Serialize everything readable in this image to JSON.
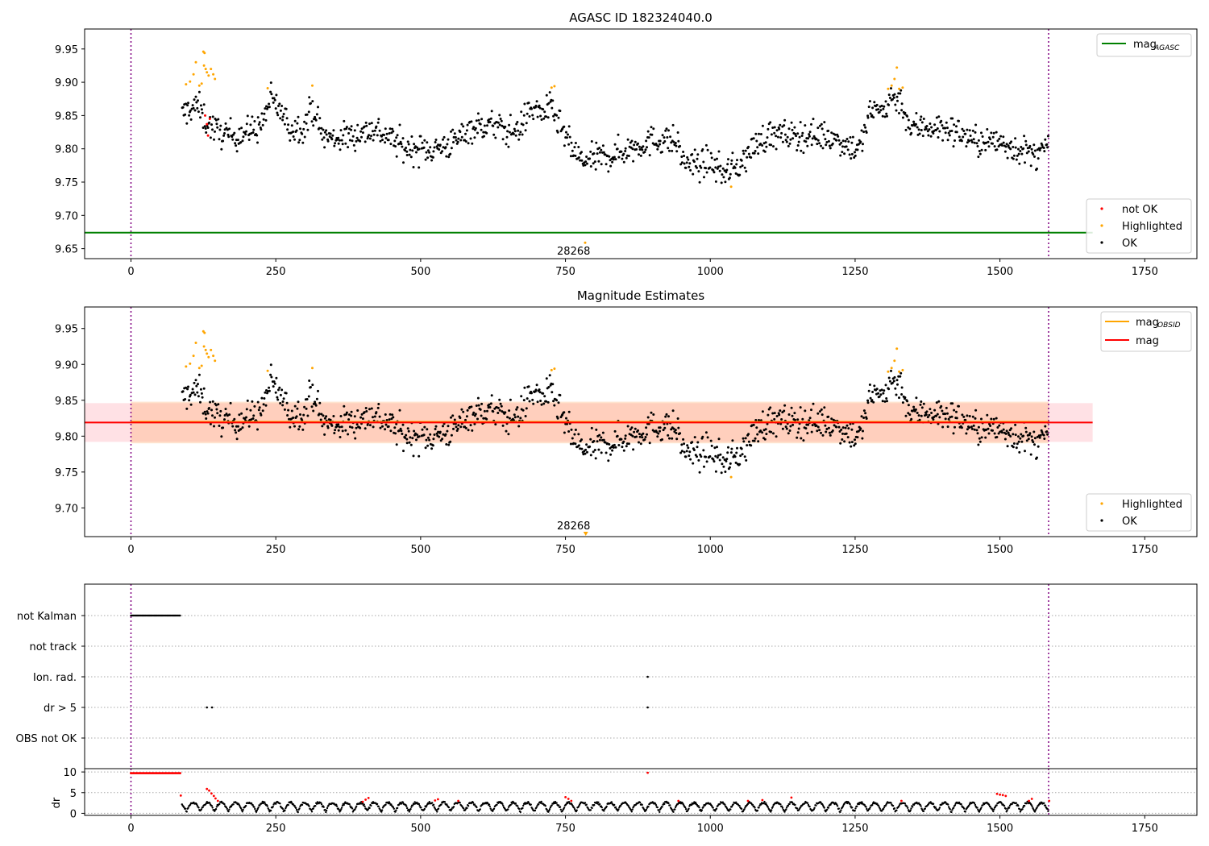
{
  "chart_data": [
    {
      "type": "scatter",
      "title": "AGASC ID 182324040.0",
      "xlim": [
        -80,
        1840
      ],
      "ylim": [
        9.635,
        9.98
      ],
      "x_ticks": [
        0,
        250,
        500,
        750,
        1000,
        1250,
        1500,
        1750
      ],
      "x_tick_labels": [
        "0",
        "250",
        "500",
        "750",
        "1000",
        "1250",
        "1500",
        "1750"
      ],
      "y_ticks": [
        9.65,
        9.7,
        9.75,
        9.8,
        9.85,
        9.9,
        9.95
      ],
      "y_tick_labels": [
        "9.65",
        "9.70",
        "9.75",
        "9.80",
        "9.85",
        "9.90",
        "9.95"
      ],
      "vlines": [
        0,
        1584
      ],
      "hline": {
        "name": "mag_AGASC",
        "value": 9.674,
        "color": "#008000",
        "x_range": [
          -80,
          1660
        ]
      },
      "legend_lines": [
        {
          "label": "mag",
          "subscript": "AGASC",
          "color": "#008000"
        }
      ],
      "legend_points": [
        {
          "label": "not OK",
          "color": "#ff0000"
        },
        {
          "label": "Highlighted",
          "color": "#ffa500"
        },
        {
          "label": "OK",
          "color": "#000000"
        }
      ],
      "annotation": {
        "text": "28268",
        "x": 785,
        "y": 9.659
      },
      "highlighted_points": [
        [
          95,
          9.897
        ],
        [
          102,
          9.901
        ],
        [
          108,
          9.912
        ],
        [
          112,
          9.93
        ],
        [
          118,
          9.895
        ],
        [
          122,
          9.898
        ],
        [
          125,
          9.946
        ],
        [
          127,
          9.944
        ],
        [
          126,
          9.925
        ],
        [
          129,
          9.92
        ],
        [
          131,
          9.915
        ],
        [
          134,
          9.91
        ],
        [
          138,
          9.92
        ],
        [
          142,
          9.912
        ],
        [
          145,
          9.905
        ],
        [
          236,
          9.891
        ],
        [
          313,
          9.895
        ],
        [
          726,
          9.892
        ],
        [
          731,
          9.894
        ],
        [
          1036,
          9.743
        ],
        [
          1307,
          9.89
        ],
        [
          1313,
          9.895
        ],
        [
          1318,
          9.905
        ],
        [
          1322,
          9.922
        ],
        [
          1326,
          9.89
        ],
        [
          1332,
          9.892
        ],
        [
          784,
          9.659
        ]
      ],
      "not_ok_points": [
        [
          128,
          9.85
        ],
        [
          131,
          9.837
        ],
        [
          133,
          9.82
        ],
        [
          136,
          9.845
        ]
      ],
      "series_note": "OK points generated from trend_knots with noise"
    },
    {
      "type": "scatter",
      "title": "Magnitude Estimates",
      "xlim": [
        -80,
        1840
      ],
      "ylim": [
        9.66,
        9.98
      ],
      "x_ticks": [
        0,
        250,
        500,
        750,
        1000,
        1250,
        1500,
        1750
      ],
      "x_tick_labels": [
        "0",
        "250",
        "500",
        "750",
        "1000",
        "1250",
        "1500",
        "1750"
      ],
      "y_ticks": [
        9.7,
        9.75,
        9.8,
        9.85,
        9.9,
        9.95
      ],
      "y_tick_labels": [
        "9.70",
        "9.75",
        "9.80",
        "9.85",
        "9.90",
        "9.95"
      ],
      "vlines": [
        0,
        1584
      ],
      "mag": 9.819,
      "mag_obsid": 9.82,
      "mag_band": [
        9.792,
        9.846
      ],
      "mag_obsid_band": [
        9.79,
        9.848
      ],
      "mag_x_range": [
        -80,
        1660
      ],
      "mag_obsid_x_range": [
        0,
        1584
      ],
      "legend_lines": [
        {
          "label": "mag",
          "subscript": "OBSID",
          "color": "#ffa500"
        },
        {
          "label": "mag",
          "subscript": "",
          "color": "#ff0000"
        }
      ],
      "legend_points": [
        {
          "label": "Highlighted",
          "color": "#ffa500"
        },
        {
          "label": "OK",
          "color": "#000000"
        }
      ],
      "annotation": {
        "text": "28268",
        "x": 785,
        "y": 9.665
      }
    },
    {
      "type": "scatter",
      "title": "",
      "xlim": [
        -80,
        1840
      ],
      "x_ticks": [
        0,
        250,
        500,
        750,
        1000,
        1250,
        1500,
        1750
      ],
      "x_tick_labels": [
        "0",
        "250",
        "500",
        "750",
        "1000",
        "1250",
        "1500",
        "1750"
      ],
      "category_rows": [
        "not Kalman",
        "not track",
        "Ion. rad.",
        "dr > 5",
        "OBS not OK"
      ],
      "flag_points": {
        "not Kalman": {
          "x_range": [
            0,
            85
          ]
        },
        "not track": {
          "x_range": []
        },
        "Ion. rad.": {
          "x": [
            892
          ]
        },
        "dr > 5": {
          "x": [
            131,
            140,
            892
          ]
        },
        "OBS not OK": {
          "x": []
        }
      },
      "dr_ylabel": "dr",
      "dr_yticks": [
        0,
        5,
        10
      ],
      "dr_ytick_labels": [
        "0",
        "5",
        "10"
      ],
      "dr_ylim": [
        -0.5,
        10.8
      ],
      "dr_vlines": [
        0,
        1584
      ],
      "dr_red_points": [
        [
          0,
          9.7
        ],
        [
          85,
          9.7
        ],
        [
          86,
          4.3
        ],
        [
          131,
          5.9
        ],
        [
          135,
          5.5
        ],
        [
          139,
          4.8
        ],
        [
          143,
          4.2
        ],
        [
          146,
          3.6
        ],
        [
          150,
          3.0
        ],
        [
          400,
          2.8
        ],
        [
          405,
          3.3
        ],
        [
          410,
          3.7
        ],
        [
          525,
          3.1
        ],
        [
          530,
          3.4
        ],
        [
          565,
          3.0
        ],
        [
          750,
          3.9
        ],
        [
          755,
          3.5
        ],
        [
          760,
          3.0
        ],
        [
          892,
          9.8
        ],
        [
          945,
          3.0
        ],
        [
          1065,
          3.0
        ],
        [
          1090,
          3.2
        ],
        [
          1140,
          3.8
        ],
        [
          1330,
          3.0
        ],
        [
          1495,
          4.7
        ],
        [
          1500,
          4.5
        ],
        [
          1505,
          4.4
        ],
        [
          1510,
          4.2
        ],
        [
          1550,
          3.0
        ],
        [
          1555,
          3.5
        ],
        [
          1585,
          3.0
        ]
      ]
    }
  ],
  "trend_knots": [
    [
      88,
      9.85
    ],
    [
      100,
      9.86
    ],
    [
      115,
      9.865
    ],
    [
      130,
      9.84
    ],
    [
      150,
      9.825
    ],
    [
      175,
      9.82
    ],
    [
      200,
      9.825
    ],
    [
      225,
      9.835
    ],
    [
      240,
      9.875
    ],
    [
      255,
      9.86
    ],
    [
      275,
      9.83
    ],
    [
      300,
      9.835
    ],
    [
      312,
      9.865
    ],
    [
      330,
      9.82
    ],
    [
      350,
      9.815
    ],
    [
      380,
      9.82
    ],
    [
      420,
      9.83
    ],
    [
      450,
      9.815
    ],
    [
      475,
      9.8
    ],
    [
      500,
      9.8
    ],
    [
      525,
      9.8
    ],
    [
      560,
      9.81
    ],
    [
      580,
      9.83
    ],
    [
      610,
      9.835
    ],
    [
      630,
      9.835
    ],
    [
      650,
      9.825
    ],
    [
      670,
      9.83
    ],
    [
      690,
      9.86
    ],
    [
      710,
      9.855
    ],
    [
      725,
      9.86
    ],
    [
      740,
      9.835
    ],
    [
      760,
      9.8
    ],
    [
      780,
      9.78
    ],
    [
      800,
      9.785
    ],
    [
      830,
      9.79
    ],
    [
      860,
      9.8
    ],
    [
      890,
      9.81
    ],
    [
      920,
      9.815
    ],
    [
      940,
      9.81
    ],
    [
      955,
      9.78
    ],
    [
      980,
      9.775
    ],
    [
      1000,
      9.78
    ],
    [
      1020,
      9.765
    ],
    [
      1040,
      9.77
    ],
    [
      1060,
      9.785
    ],
    [
      1080,
      9.81
    ],
    [
      1100,
      9.82
    ],
    [
      1150,
      9.82
    ],
    [
      1200,
      9.82
    ],
    [
      1230,
      9.81
    ],
    [
      1250,
      9.8
    ],
    [
      1262,
      9.81
    ],
    [
      1275,
      9.855
    ],
    [
      1300,
      9.86
    ],
    [
      1315,
      9.88
    ],
    [
      1330,
      9.87
    ],
    [
      1345,
      9.83
    ],
    [
      1370,
      9.835
    ],
    [
      1400,
      9.83
    ],
    [
      1430,
      9.825
    ],
    [
      1460,
      9.81
    ],
    [
      1500,
      9.81
    ],
    [
      1530,
      9.8
    ],
    [
      1560,
      9.79
    ],
    [
      1584,
      9.8
    ]
  ]
}
